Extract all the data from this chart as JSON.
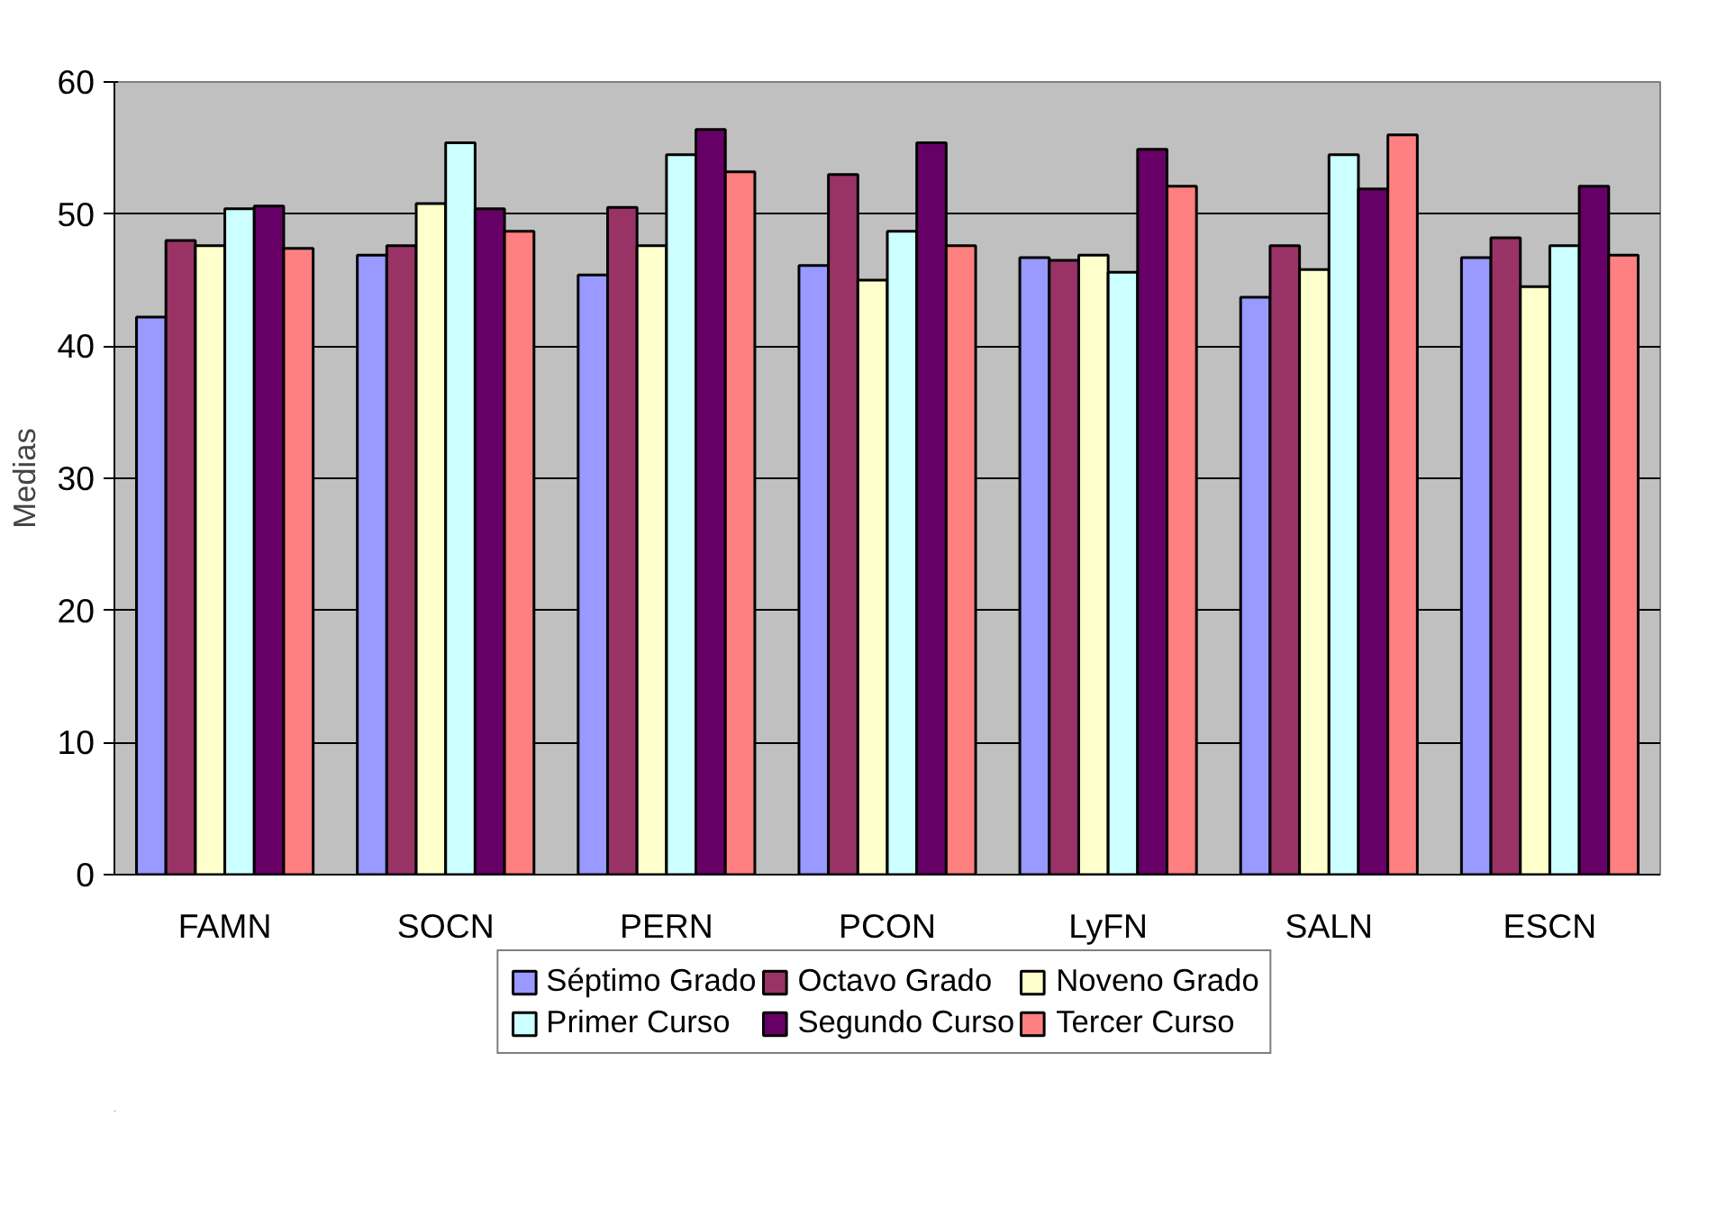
{
  "chart_data": {
    "type": "bar",
    "ylabel": "Medias",
    "categories": [
      "FAMN",
      "SOCN",
      "PERN",
      "PCON",
      "LyFN",
      "SALN",
      "ESCN"
    ],
    "series": [
      {
        "name": "Séptimo Grado",
        "color": "#9999ff",
        "values": [
          42.2,
          46.9,
          45.4,
          46.1,
          46.7,
          43.7,
          46.7
        ]
      },
      {
        "name": "Octavo Grado",
        "color": "#993366",
        "values": [
          48.0,
          47.6,
          50.5,
          53.0,
          46.5,
          47.6,
          48.2
        ]
      },
      {
        "name": "Noveno Grado",
        "color": "#ffffcc",
        "values": [
          47.6,
          50.8,
          47.6,
          45.0,
          46.9,
          45.8,
          44.5
        ]
      },
      {
        "name": "Primer Curso",
        "color": "#ccffff",
        "values": [
          50.4,
          55.4,
          54.5,
          48.7,
          45.6,
          54.5,
          47.6
        ]
      },
      {
        "name": "Segundo Curso",
        "color": "#660066",
        "values": [
          50.6,
          50.4,
          56.4,
          55.4,
          54.9,
          51.9,
          52.1
        ]
      },
      {
        "name": "Tercer Curso",
        "color": "#ff8080",
        "values": [
          47.4,
          48.7,
          53.2,
          47.6,
          52.1,
          56.0,
          46.9
        ]
      }
    ],
    "ylim": [
      0,
      60
    ],
    "yticks": [
      0,
      10,
      20,
      30,
      40,
      50,
      60
    ],
    "grid": "y",
    "legend": "bottom"
  }
}
